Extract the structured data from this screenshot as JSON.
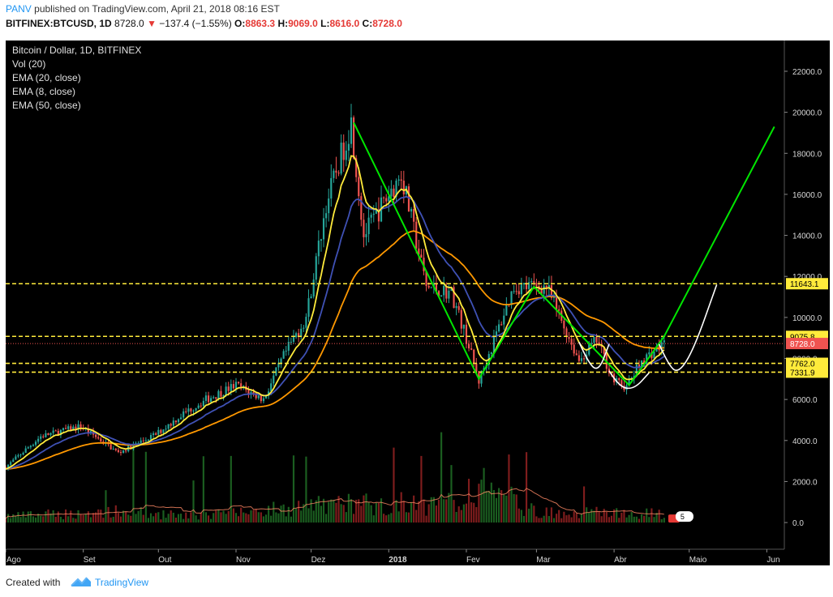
{
  "header": {
    "author": "PANV",
    "published_text": "published on TradingView.com, April 21, 2018 08:16 EST",
    "symbol": "BITFINEX:BTCUSD, 1D",
    "last": "8728.0",
    "change": "−137.4 (−1.55%)",
    "o_label": "O:",
    "o": "8863.3",
    "h_label": "H:",
    "h": "9069.0",
    "l_label": "L:",
    "l": "8616.0",
    "c_label": "C:",
    "c": "8728.0"
  },
  "legend": {
    "title": "Bitcoin / Dollar, 1D, BITFINEX",
    "vol": "Vol (20)",
    "ema1": "EMA (20, close)",
    "ema2": "EMA (8, close)",
    "ema3": "EMA (50, close)"
  },
  "footer": {
    "created_with": "Created with",
    "brand": "TradingView"
  },
  "colors": {
    "bull": "#26a69a",
    "bear": "#ef5350",
    "ema20": "#3f51b5",
    "ema8": "#ffeb3b",
    "ema50": "#ff9800",
    "trend": "#00e600",
    "projection": "#ffffff",
    "level": "#ffeb3b",
    "price_tag": "#ef5350"
  },
  "chart_data": {
    "type": "candlestick",
    "title": "Bitcoin / Dollar, 1D, BITFINEX",
    "x_range": [
      "2017-08-01",
      "2018-06-08"
    ],
    "y_range": [
      -1300,
      23500
    ],
    "y_ticks": [
      0,
      2000,
      4000,
      6000,
      8000,
      10000,
      12000,
      14000,
      16000,
      18000,
      20000,
      22000
    ],
    "y_tick_labels": [
      "0.0",
      "2000.0",
      "4000.0",
      "6000.0",
      "8000.0",
      "10000.0",
      "12000.0",
      "14000.0",
      "16000.0",
      "18000.0",
      "20000.0",
      "22000.0"
    ],
    "x_ticks": [
      {
        "date": "2017-08-01",
        "label": "Ago"
      },
      {
        "date": "2017-09-01",
        "label": "Set"
      },
      {
        "date": "2017-10-01",
        "label": "Out"
      },
      {
        "date": "2017-11-01",
        "label": "Nov"
      },
      {
        "date": "2017-12-01",
        "label": "Dez"
      },
      {
        "date": "2018-01-01",
        "label": "2018"
      },
      {
        "date": "2018-02-01",
        "label": "Fev"
      },
      {
        "date": "2018-03-01",
        "label": "Mar"
      },
      {
        "date": "2018-04-01",
        "label": "Abr"
      },
      {
        "date": "2018-05-01",
        "label": "Maio"
      },
      {
        "date": "2018-06-01",
        "label": "Jun"
      }
    ],
    "price_keypoints": [
      [
        "2017-08-01",
        2700
      ],
      [
        "2017-08-15",
        4200
      ],
      [
        "2017-08-31",
        4700
      ],
      [
        "2017-09-15",
        3400
      ],
      [
        "2017-09-30",
        4300
      ],
      [
        "2017-10-12",
        5400
      ],
      [
        "2017-10-20",
        6000
      ],
      [
        "2017-11-01",
        6700
      ],
      [
        "2017-11-12",
        6000
      ],
      [
        "2017-11-20",
        8100
      ],
      [
        "2017-11-29",
        10000
      ],
      [
        "2017-12-07",
        15500
      ],
      [
        "2017-12-17",
        19500
      ],
      [
        "2017-12-22",
        14000
      ],
      [
        "2018-01-06",
        17000
      ],
      [
        "2018-01-16",
        11500
      ],
      [
        "2018-01-26",
        11200
      ],
      [
        "2018-02-01",
        9000
      ],
      [
        "2018-02-06",
        6900
      ],
      [
        "2018-02-20",
        11500
      ],
      [
        "2018-03-05",
        11500
      ],
      [
        "2018-03-18",
        7900
      ],
      [
        "2018-03-25",
        8900
      ],
      [
        "2018-04-01",
        6900
      ],
      [
        "2018-04-06",
        6600
      ],
      [
        "2018-04-12",
        7900
      ],
      [
        "2018-04-21",
        8728
      ]
    ],
    "volume_keypoints": [
      [
        "2017-08-01",
        300
      ],
      [
        "2017-09-15",
        500
      ],
      [
        "2017-10-15",
        300
      ],
      [
        "2017-11-15",
        600
      ],
      [
        "2017-12-15",
        900
      ],
      [
        "2018-01-15",
        800
      ],
      [
        "2018-02-06",
        1400
      ],
      [
        "2018-03-01",
        500
      ],
      [
        "2018-04-21",
        400
      ]
    ],
    "horizontal_levels": [
      {
        "value": 11643.1,
        "label": "11643.1"
      },
      {
        "value": 9075.8,
        "label": "9075.8"
      },
      {
        "value": 7762.0,
        "label": "7762.0"
      },
      {
        "value": 7331.9,
        "label": "7331.9"
      }
    ],
    "last_price": {
      "value": 8728.0,
      "label": "8728.0"
    },
    "trend_lines": [
      [
        [
          "2017-12-18",
          19500
        ],
        [
          "2018-02-06",
          7000
        ],
        [
          "2018-02-28",
          11500
        ],
        [
          "2018-04-07",
          6700
        ],
        [
          "2018-04-21",
          9075.8
        ]
      ],
      [
        [
          "2018-04-21",
          9075.8
        ],
        [
          "2018-06-04",
          19300
        ]
      ]
    ],
    "projection_curves": [
      [
        [
          "2018-03-18",
          8800
        ],
        [
          "2018-03-22",
          7700
        ],
        [
          "2018-03-26",
          7400
        ],
        [
          "2018-03-30",
          8700
        ]
      ],
      [
        [
          "2018-03-30",
          7400
        ],
        [
          "2018-04-03",
          6600
        ],
        [
          "2018-04-09",
          6500
        ],
        [
          "2018-04-15",
          7300
        ]
      ],
      [
        [
          "2018-04-19",
          8700
        ],
        [
          "2018-04-23",
          7600
        ],
        [
          "2018-04-27",
          7300
        ],
        [
          "2018-05-03",
          8500
        ],
        [
          "2018-05-12",
          11600
        ]
      ]
    ],
    "badge": "5"
  }
}
